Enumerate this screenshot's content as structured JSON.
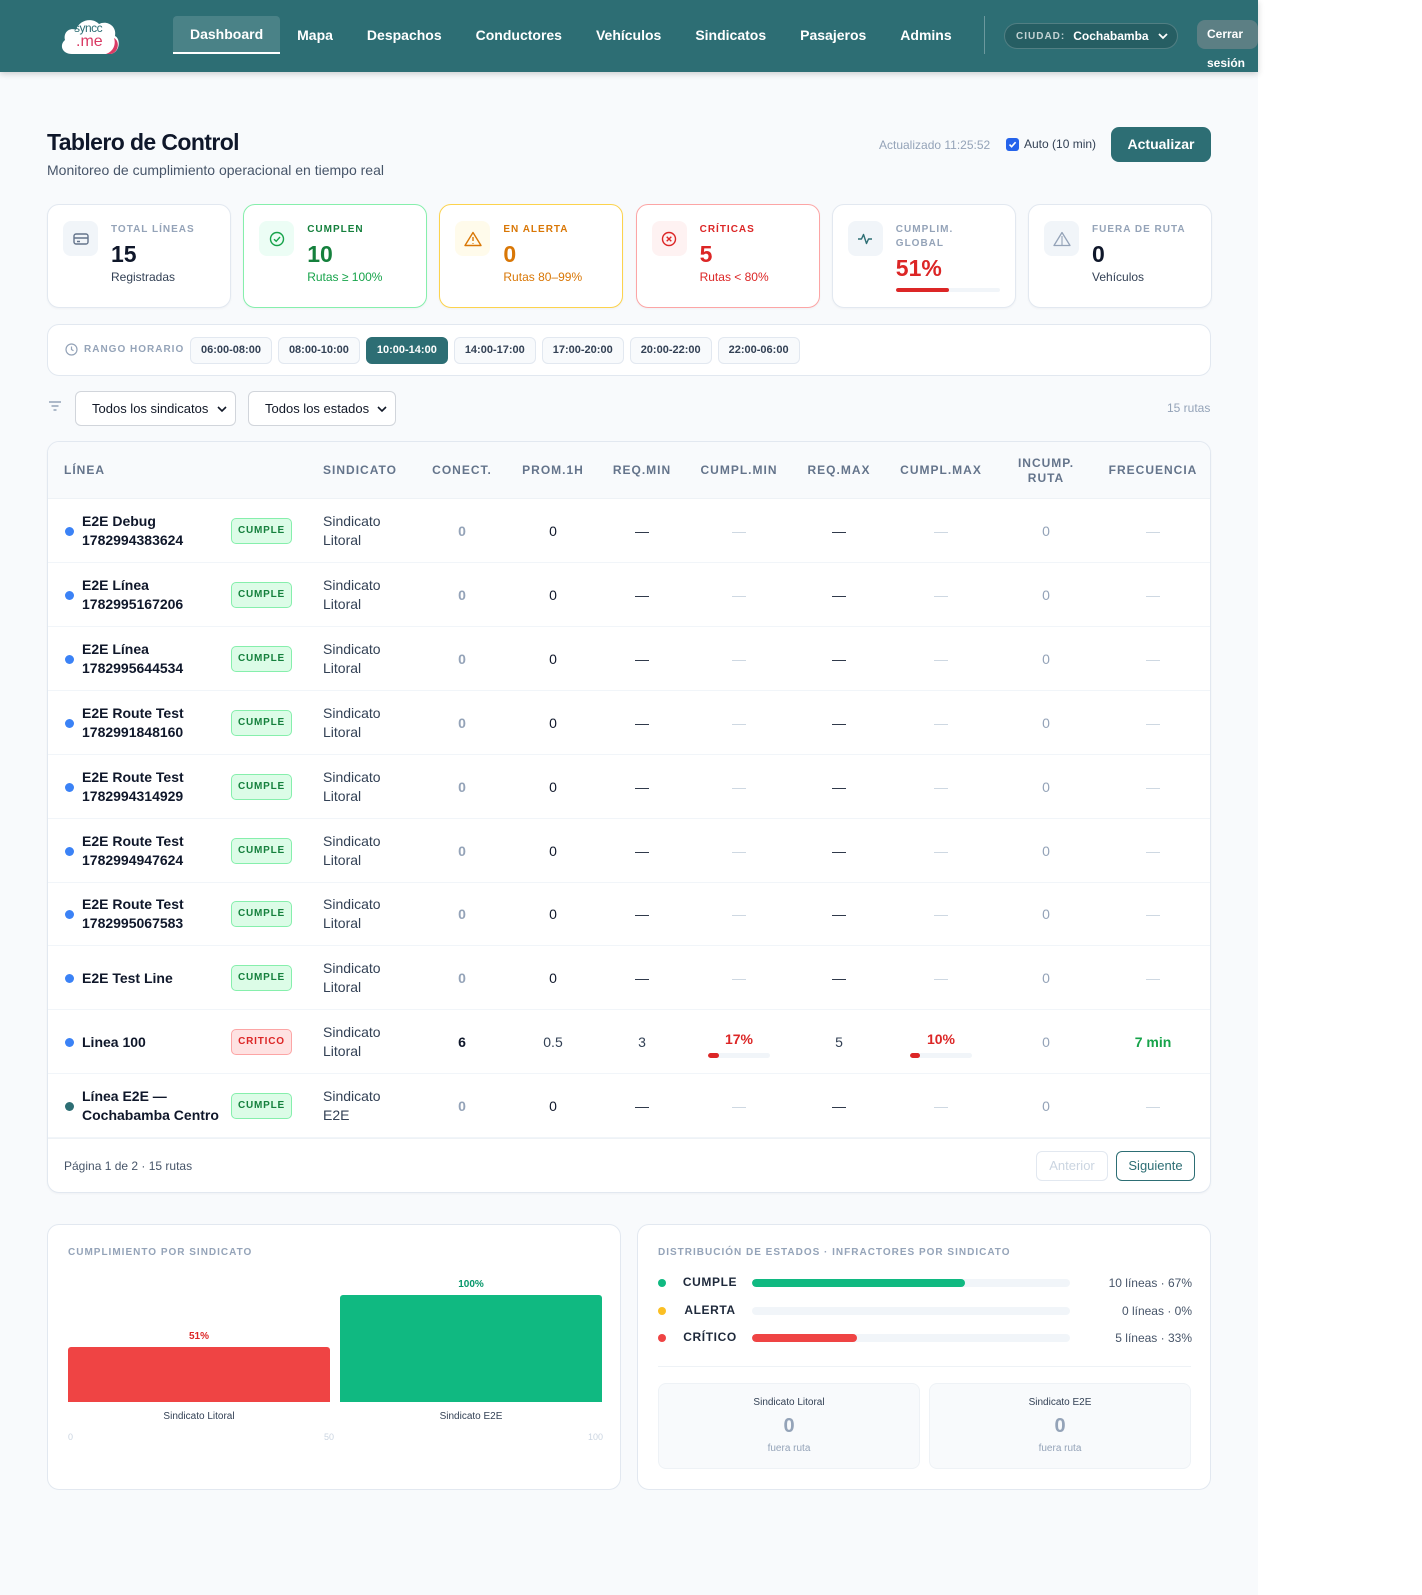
{
  "header": {
    "logo_text_top": "syncc",
    "logo_text_bottom": ".me",
    "nav": [
      "Dashboard",
      "Mapa",
      "Despachos",
      "Conductores",
      "Vehículos",
      "Sindicatos",
      "Pasajeros",
      "Admins"
    ],
    "active_nav": "Dashboard",
    "city_label": "CIUDAD:",
    "city_value": "Cochabamba",
    "logout_label": "Cerrar sesión",
    "brand_color": "#2d6e74"
  },
  "page": {
    "title": "Tablero de Control",
    "subtitle": "Monitoreo de cumplimiento operacional en tiempo real",
    "updated": "Actualizado 11:25:52",
    "auto_label": "Auto (10 min)",
    "auto_checked": true,
    "update_button": "Actualizar"
  },
  "kpis": [
    {
      "label": "TOTAL LÍNEAS",
      "value": "15",
      "sub": "Registradas",
      "icon": "card-icon",
      "tone": "neutral"
    },
    {
      "label": "CUMPLEN",
      "value": "10",
      "sub": "Rutas ≥ 100%",
      "icon": "check-circle-icon",
      "tone": "green"
    },
    {
      "label": "EN ALERTA",
      "value": "0",
      "sub": "Rutas 80–99%",
      "icon": "warning-triangle-icon",
      "tone": "amber"
    },
    {
      "label": "CRÍTICAS",
      "value": "5",
      "sub": "Rutas < 80%",
      "icon": "x-circle-icon",
      "tone": "red"
    },
    {
      "label": "CUMPLIM.",
      "label2": "GLOBAL",
      "value": "51%",
      "progress": 0.51,
      "icon": "activity-icon",
      "tone": "red"
    },
    {
      "label": "FUERA DE RUTA",
      "value": "0",
      "sub": "Vehículos",
      "icon": "route-warning-icon",
      "tone": "neutral"
    }
  ],
  "range": {
    "label": "RANGO HORARIO",
    "options": [
      "06:00-08:00",
      "08:00-10:00",
      "10:00-14:00",
      "14:00-17:00",
      "17:00-20:00",
      "20:00-22:00",
      "22:00-06:00"
    ],
    "active": "10:00-14:00"
  },
  "filters": {
    "sindicato": "Todos los sindicatos",
    "estado": "Todos los estados",
    "count": "15 rutas"
  },
  "table": {
    "headers": [
      "LÍNEA",
      "SINDICATO",
      "CONECT.",
      "PROM.1H",
      "REQ.MIN",
      "CUMPL.MIN",
      "REQ.MAX",
      "CUMPL.MAX",
      "INCUMP.",
      "RUTA",
      "FRECUENCIA"
    ],
    "rows": [
      {
        "line1": "E2E Debug",
        "line2": "1782994383624",
        "badge": "CUMPLE",
        "status": "ok",
        "sind1": "Sindicato",
        "sind2": "Litoral",
        "conect": "0",
        "prom": "0",
        "reqmin": "—",
        "cumplmin": "—",
        "reqmax": "—",
        "cumplmax": "—",
        "incump": "0",
        "freq": "—",
        "dot": "#3b82f6"
      },
      {
        "line1": "E2E Línea",
        "line2": "1782995167206",
        "badge": "CUMPLE",
        "status": "ok",
        "sind1": "Sindicato",
        "sind2": "Litoral",
        "conect": "0",
        "prom": "0",
        "reqmin": "—",
        "cumplmin": "—",
        "reqmax": "—",
        "cumplmax": "—",
        "incump": "0",
        "freq": "—",
        "dot": "#3b82f6"
      },
      {
        "line1": "E2E Línea",
        "line2": "1782995644534",
        "badge": "CUMPLE",
        "status": "ok",
        "sind1": "Sindicato",
        "sind2": "Litoral",
        "conect": "0",
        "prom": "0",
        "reqmin": "—",
        "cumplmin": "—",
        "reqmax": "—",
        "cumplmax": "—",
        "incump": "0",
        "freq": "—",
        "dot": "#3b82f6"
      },
      {
        "line1": "E2E Route Test",
        "line2": "1782991848160",
        "badge": "CUMPLE",
        "status": "ok",
        "sind1": "Sindicato",
        "sind2": "Litoral",
        "conect": "0",
        "prom": "0",
        "reqmin": "—",
        "cumplmin": "—",
        "reqmax": "—",
        "cumplmax": "—",
        "incump": "0",
        "freq": "—",
        "dot": "#3b82f6"
      },
      {
        "line1": "E2E Route Test",
        "line2": "1782994314929",
        "badge": "CUMPLE",
        "status": "ok",
        "sind1": "Sindicato",
        "sind2": "Litoral",
        "conect": "0",
        "prom": "0",
        "reqmin": "—",
        "cumplmin": "—",
        "reqmax": "—",
        "cumplmax": "—",
        "incump": "0",
        "freq": "—",
        "dot": "#3b82f6"
      },
      {
        "line1": "E2E Route Test",
        "line2": "1782994947624",
        "badge": "CUMPLE",
        "status": "ok",
        "sind1": "Sindicato",
        "sind2": "Litoral",
        "conect": "0",
        "prom": "0",
        "reqmin": "—",
        "cumplmin": "—",
        "reqmax": "—",
        "cumplmax": "—",
        "incump": "0",
        "freq": "—",
        "dot": "#3b82f6"
      },
      {
        "line1": "E2E Route Test",
        "line2": "1782995067583",
        "badge": "CUMPLE",
        "status": "ok",
        "sind1": "Sindicato",
        "sind2": "Litoral",
        "conect": "0",
        "prom": "0",
        "reqmin": "—",
        "cumplmin": "—",
        "reqmax": "—",
        "cumplmax": "—",
        "incump": "0",
        "freq": "—",
        "dot": "#3b82f6"
      },
      {
        "line1": "E2E Test Line",
        "line2": "",
        "badge": "CUMPLE",
        "status": "ok",
        "sind1": "Sindicato",
        "sind2": "Litoral",
        "conect": "0",
        "prom": "0",
        "reqmin": "—",
        "cumplmin": "—",
        "reqmax": "—",
        "cumplmax": "—",
        "incump": "0",
        "freq": "—",
        "dot": "#3b82f6"
      },
      {
        "line1": "Linea 100",
        "line2": "",
        "badge": "CRITICO",
        "status": "crit",
        "sind1": "Sindicato",
        "sind2": "Litoral",
        "conect": "6",
        "prom": "0.5",
        "reqmin": "3",
        "cumplmin": "17%",
        "cumplmin_frac": 0.17,
        "reqmax": "5",
        "cumplmax": "10%",
        "cumplmax_frac": 0.1,
        "incump": "0",
        "freq": "7 min",
        "dot": "#3b82f6"
      },
      {
        "line1": "Línea E2E —",
        "line2": "Cochabamba Centro",
        "badge": "CUMPLE",
        "status": "ok",
        "sind1": "Sindicato",
        "sind2": "E2E",
        "conect": "0",
        "prom": "0",
        "reqmin": "—",
        "cumplmin": "—",
        "reqmax": "—",
        "cumplmax": "—",
        "incump": "0",
        "freq": "—",
        "dot": "#2d6e74"
      }
    ],
    "pageinfo": "Página 1 de 2 · 15 rutas",
    "prev": "Anterior",
    "next": "Siguiente"
  },
  "chart_data": {
    "type": "bar",
    "title": "CUMPLIMIENTO POR SINDICATO",
    "categories": [
      "Sindicato Litoral",
      "Sindicato E2E"
    ],
    "values": [
      51,
      100
    ],
    "value_labels": [
      "51%",
      "100%"
    ],
    "colors": [
      "#ef4444",
      "#10b981"
    ],
    "ylim": [
      0,
      100
    ],
    "axis_ticks": [
      "0",
      "50",
      "100"
    ]
  },
  "distribution": {
    "title": "DISTRIBUCIÓN DE ESTADOS · INFRACTORES POR SINDICATO",
    "items": [
      {
        "label": "CUMPLE",
        "count": "10 líneas · 67%",
        "fraction": 0.67,
        "color": "#10b981"
      },
      {
        "label": "ALERTA",
        "count": "0 líneas · 0%",
        "fraction": 0.0,
        "color": "#fbbf24"
      },
      {
        "label": "CRÍTICO",
        "count": "5 líneas · 33%",
        "fraction": 0.33,
        "color": "#ef4444"
      }
    ],
    "offroute": [
      {
        "name": "Sindicato Litoral",
        "value": "0",
        "sub": "fuera ruta"
      },
      {
        "name": "Sindicato E2E",
        "value": "0",
        "sub": "fuera ruta"
      }
    ]
  }
}
